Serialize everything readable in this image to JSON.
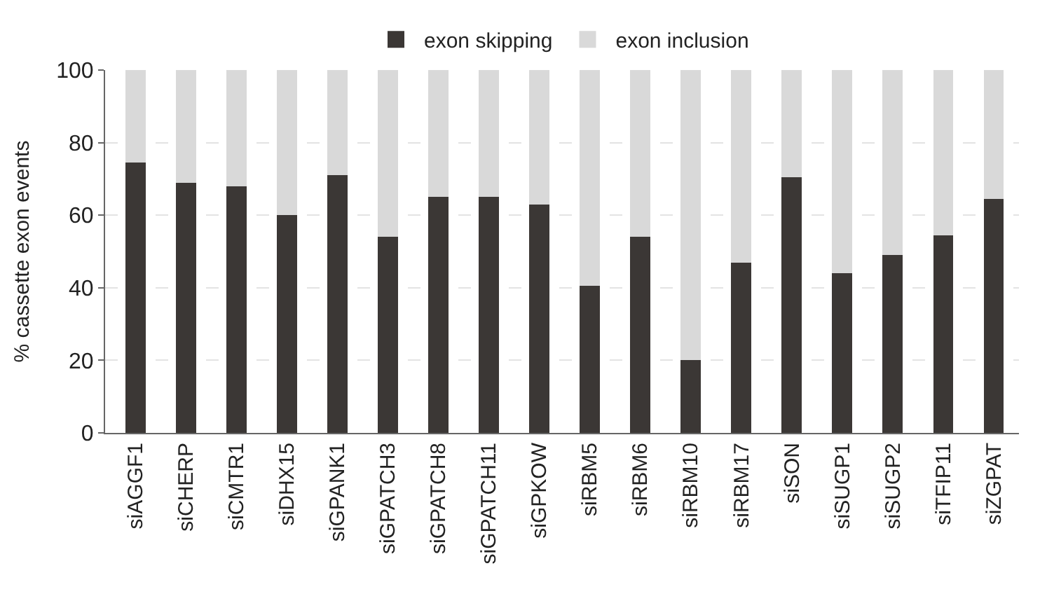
{
  "chart_data": {
    "type": "bar",
    "stacked": true,
    "ylabel": "% cassette exon events",
    "categories": [
      "siAGGF1",
      "siCHERP",
      "siCMTR1",
      "siDHX15",
      "siGPANK1",
      "siGPATCH3",
      "siGPATCH8",
      "siGPATCH11",
      "siGPKOW",
      "siRBM5",
      "siRBM6",
      "siRBM10",
      "siRBM17",
      "siSON",
      "siSUGP1",
      "siSUGP2",
      "siTFIP11",
      "siZGPAT"
    ],
    "series": [
      {
        "name": "exon skipping",
        "color": "#3b3735",
        "values": [
          74.5,
          69,
          68,
          60,
          71,
          54,
          65,
          65,
          63,
          40.5,
          54,
          20,
          47,
          70.5,
          44,
          49,
          54.5,
          64.5
        ]
      },
      {
        "name": "exon inclusion",
        "color": "#d9d9d9",
        "values": [
          25.5,
          31,
          32,
          40,
          29,
          46,
          35,
          35,
          37,
          59.5,
          46,
          80,
          53,
          29.5,
          56,
          51,
          45.5,
          35.5
        ]
      }
    ],
    "ylim": [
      0,
      100
    ],
    "yticks": [
      0,
      20,
      40,
      60,
      80,
      100
    ],
    "grid": "y",
    "legend": "top"
  }
}
